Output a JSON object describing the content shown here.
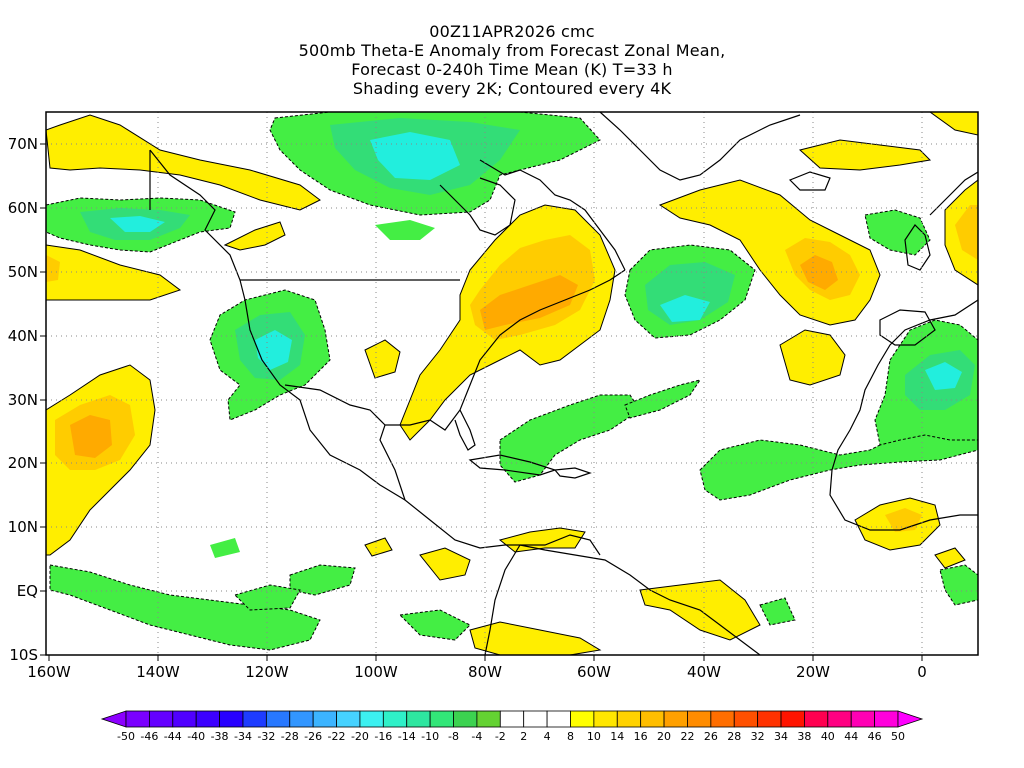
{
  "title": {
    "line1": "00Z11APR2026 cmc",
    "line2": "500mb Theta-E Anomaly from Forecast Zonal Mean,",
    "line3": "Forecast 0-240h Time Mean (K) T=33 h",
    "line4": "Shading every 2K; Contoured every 4K"
  },
  "map": {
    "lon_range": [
      -160,
      10
    ],
    "lat_range": [
      -10,
      75
    ],
    "lon_ticks": [
      "160W",
      "140W",
      "120W",
      "100W",
      "80W",
      "60W",
      "40W",
      "20W",
      "0"
    ],
    "lat_ticks": [
      "70N",
      "60N",
      "50N",
      "40N",
      "30N",
      "20N",
      "10N",
      "EQ",
      "10S"
    ],
    "grid": "dotted"
  },
  "colorbar": {
    "labels": [
      "-50",
      "-46",
      "-44",
      "-40",
      "-38",
      "-34",
      "-32",
      "-28",
      "-26",
      "-22",
      "-20",
      "-16",
      "-14",
      "-10",
      "-8",
      "-4",
      "-2",
      "2",
      "4",
      "8",
      "10",
      "14",
      "16",
      "20",
      "22",
      "26",
      "28",
      "32",
      "34",
      "38",
      "40",
      "44",
      "46",
      "50"
    ],
    "colors": [
      "#8c00ff",
      "#7a00ff",
      "#6400ff",
      "#5000ff",
      "#3c00ff",
      "#2800ff",
      "#1e3cff",
      "#2878ff",
      "#3296ff",
      "#3cb4ff",
      "#46d2ff",
      "#3cf0f0",
      "#2ff0c8",
      "#2ee6a0",
      "#32e678",
      "#3cd250",
      "#64d232",
      "#ffffff",
      "#ffffff",
      "#ffffff",
      "#ffff00",
      "#ffe600",
      "#ffd200",
      "#ffbe00",
      "#ffa000",
      "#ff8c00",
      "#ff6e00",
      "#ff5000",
      "#ff3200",
      "#ff1400",
      "#ff0050",
      "#ff0082",
      "#ff00b4",
      "#ff00dc",
      "#ff00ff"
    ]
  },
  "colors": {
    "green_light": "#44ee44",
    "green_mid": "#33dd77",
    "cyan": "#22eedd",
    "yellow": "#ffee00",
    "yellow_dark": "#ffcc00",
    "orange": "#ffaa00",
    "land_outline": "#000000"
  }
}
